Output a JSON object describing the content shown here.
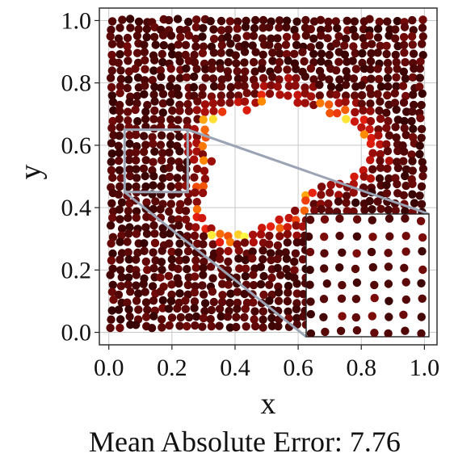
{
  "chart_data": {
    "type": "scatter",
    "xlabel": "x",
    "ylabel": "y",
    "xlim": [
      -0.03,
      1.04
    ],
    "ylim": [
      -0.04,
      1.04
    ],
    "xticks": [
      "0.0",
      "0.2",
      "0.4",
      "0.6",
      "0.8",
      "1.0"
    ],
    "yticks": [
      "0.0",
      "0.2",
      "0.4",
      "0.6",
      "0.8",
      "1.0"
    ],
    "grid": true,
    "colormap": "hot (dark red to yellow)",
    "point_count_approx": 1200,
    "hole": {
      "shape": "irregular void",
      "center": [
        0.52,
        0.55
      ]
    },
    "inset_zoom": {
      "xlim": [
        0.05,
        0.25
      ],
      "ylim": [
        0.45,
        0.65
      ],
      "placement": "bottom-right"
    },
    "colors": {
      "low": "#1e0000",
      "mid": "#8b0a0a",
      "high_red": "#e01010",
      "orange": "#ff8c00",
      "yellow": "#ffff40",
      "connector": "#9aa4b5"
    }
  },
  "caption": "Mean Absolute Error: 7.76"
}
